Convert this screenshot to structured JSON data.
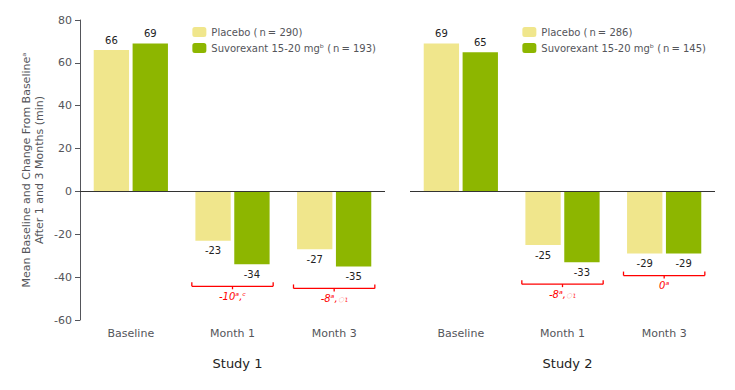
{
  "chart_data": [
    {
      "type": "bar",
      "title": "Study 1",
      "categories": [
        "Baseline",
        "Month 1",
        "Month 3"
      ],
      "series": [
        {
          "name": "Placebo ( n = 290)",
          "color": "#F0E68C",
          "values": [
            66,
            -23,
            -27
          ]
        },
        {
          "name": "Suvorexant 15-20 mgᵇ ( n = 193)",
          "color": "#8DB600",
          "values": [
            69,
            -34,
            -35
          ]
        }
      ],
      "ylabel": "Mean Baseline and Change From Baselineᵃ\nAfter 1 and 3 Months (min)",
      "ylim": [
        -60,
        80
      ],
      "yticks": [
        -60,
        -40,
        -20,
        0,
        20,
        40,
        60,
        80
      ],
      "grid": false,
      "legend": "upper right",
      "data_labels": true,
      "annotations": [
        {
          "category": "Month 1",
          "text": "-10ᵃ,ᶜ"
        },
        {
          "category": "Month 3",
          "text": "-8ᵃ,ၤ"
        }
      ]
    },
    {
      "type": "bar",
      "title": "Study 2",
      "categories": [
        "Baseline",
        "Month 1",
        "Month 3"
      ],
      "series": [
        {
          "name": "Placebo ( n = 286)",
          "color": "#F0E68C",
          "values": [
            69,
            -25,
            -29
          ]
        },
        {
          "name": "Suvorexant 15-20 mgᵇ ( n = 145)",
          "color": "#8DB600",
          "values": [
            65,
            -33,
            -29
          ]
        }
      ],
      "ylim": [
        -60,
        80
      ],
      "yticks": [
        -60,
        -40,
        -20,
        0,
        20,
        40,
        60,
        80
      ],
      "grid": false,
      "legend": "upper right",
      "data_labels": true,
      "tick_labels": "x",
      "annotations": [
        {
          "category": "Month 1",
          "text": "-8ᵃ,ၤ"
        },
        {
          "category": "Month 3",
          "text": "0ᵃ"
        }
      ]
    }
  ]
}
